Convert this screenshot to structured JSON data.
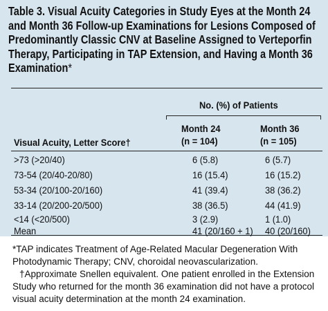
{
  "title": "Table 3. Visual Acuity Categories in Study Eyes at the Month 24 and Month 36 Follow-up Examinations for Lesions Composed of Predominantly Classic CNV at Baseline Assigned to Verteporfin Therapy, Participating in TAP Extension, and Having a Month 36 Examination",
  "title_note_mark": "*",
  "table": {
    "spanner": "No. (%) of Patients",
    "row_header": "Visual Acuity, Letter Score†",
    "columns": [
      {
        "label": "Month 24",
        "n": "(n = 104)"
      },
      {
        "label": "Month 36",
        "n": "(n = 105)"
      }
    ],
    "rows": [
      [
        ">73 (>20/40)",
        "6 (5.8)",
        "6 (5.7)"
      ],
      [
        "73-54 (20/40-20/80)",
        "16 (15.4)",
        "16 (15.2)"
      ],
      [
        "53-34 (20/100-20/160)",
        "41 (39.4)",
        "38 (36.2)"
      ],
      [
        "33-14 (20/200-20/500)",
        "38 (36.5)",
        "44 (41.9)"
      ],
      [
        "<14 (<20/500)",
        "3 (2.9)",
        "1 (1.0)"
      ],
      [
        "Mean",
        "41 (20/160 + 1)",
        "40 (20/160)"
      ]
    ]
  },
  "footnotes": [
    "*TAP indicates Treatment of Age-Related Macular Degeneration With Photodynamic Therapy; CNV, choroidal neovascularization.",
    "†Approximate Snellen equivalent. One patient enrolled in the Extension Study who returned for the month 36 examination did not have a protocol visual acuity determination at the month 24 examination."
  ]
}
